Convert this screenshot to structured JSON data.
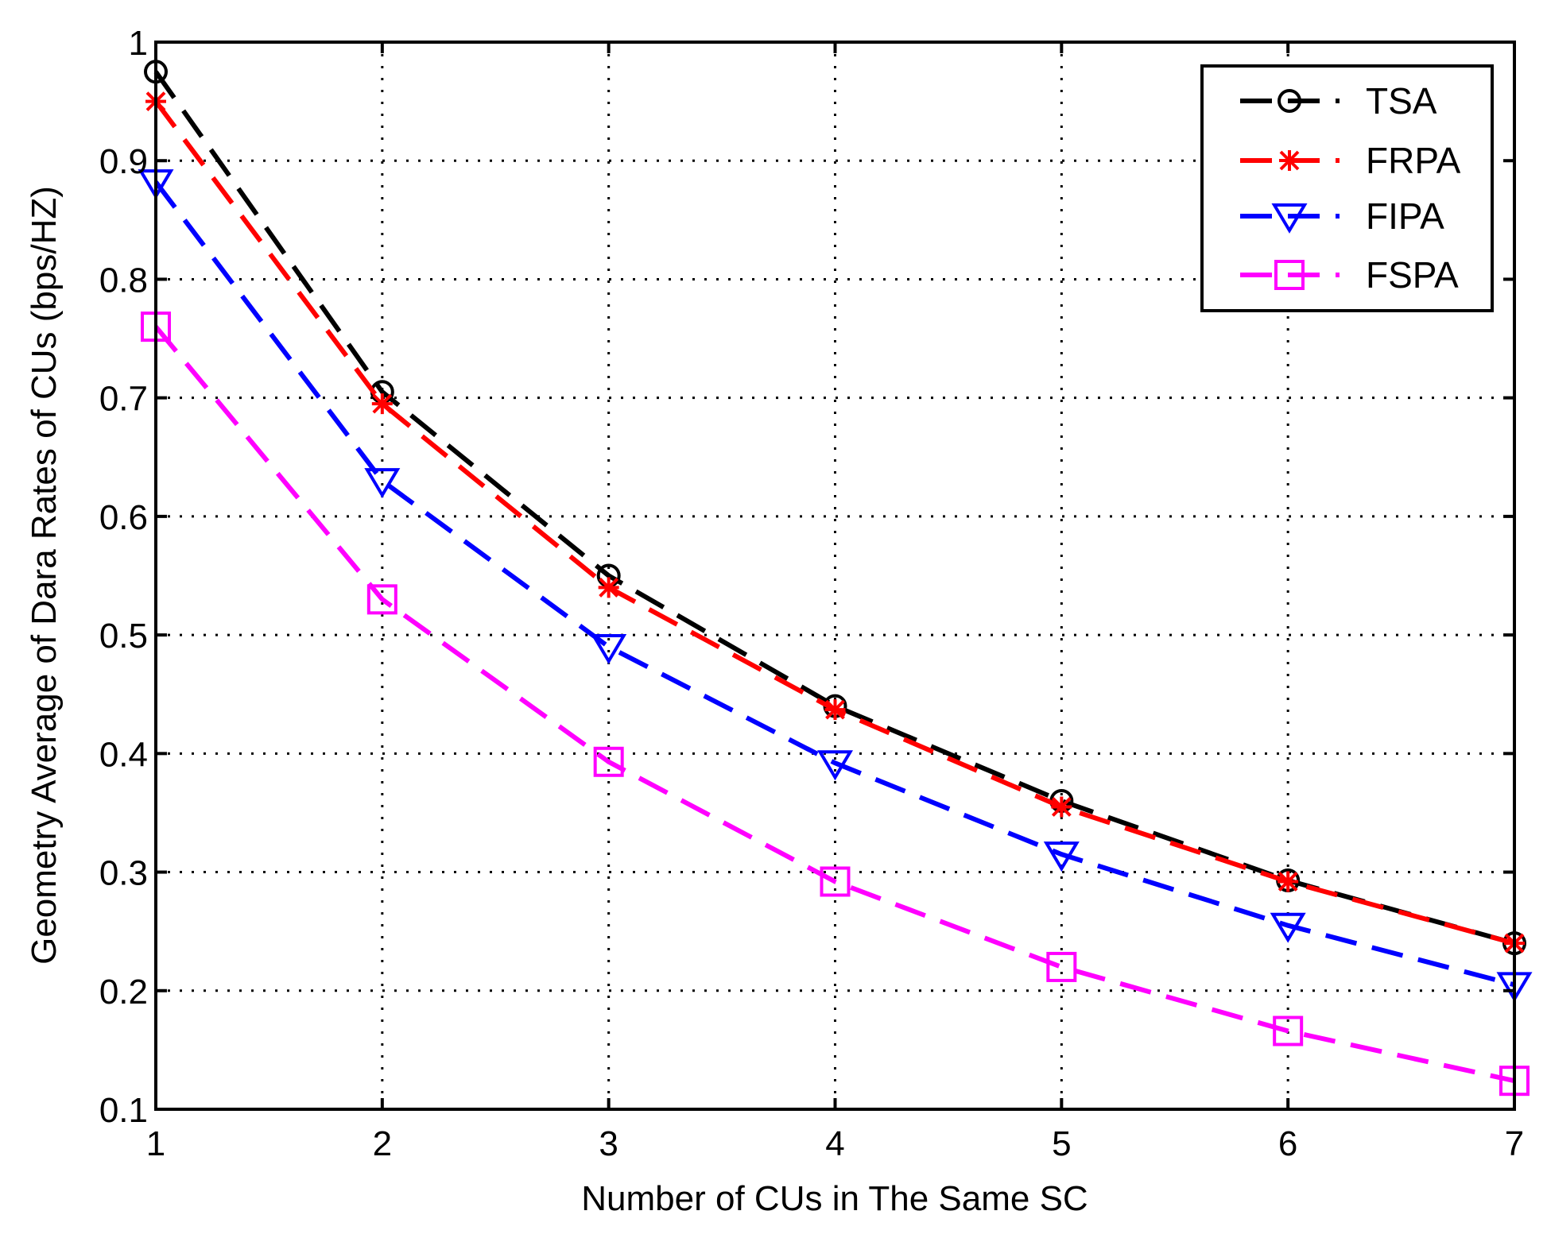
{
  "chart_data": {
    "type": "line",
    "title": "",
    "xlabel": "Number of CUs in The Same SC",
    "ylabel": "Geometry Average of Dara Rates of CUs (bps/HZ)",
    "xlim": [
      1,
      7
    ],
    "ylim": [
      0.1,
      1
    ],
    "x": [
      1,
      2,
      3,
      4,
      5,
      6,
      7
    ],
    "xticks": [
      "1",
      "2",
      "3",
      "4",
      "5",
      "6",
      "7"
    ],
    "yticks": [
      "0.1",
      "0.2",
      "0.3",
      "0.4",
      "0.5",
      "0.6",
      "0.7",
      "0.8",
      "0.9",
      "1"
    ],
    "grid": true,
    "legend_position": "top-right",
    "series": [
      {
        "name": "TSA",
        "color": "#000000",
        "marker": "circle",
        "values": [
          0.975,
          0.705,
          0.55,
          0.44,
          0.36,
          0.293,
          0.24
        ]
      },
      {
        "name": "FRPA",
        "color": "#ff0000",
        "marker": "star",
        "values": [
          0.95,
          0.695,
          0.54,
          0.437,
          0.355,
          0.292,
          0.24
        ]
      },
      {
        "name": "FIPA",
        "color": "#0000ff",
        "marker": "triangle-down",
        "values": [
          0.882,
          0.63,
          0.49,
          0.392,
          0.315,
          0.255,
          0.205
        ]
      },
      {
        "name": "FSPA",
        "color": "#ff00ff",
        "marker": "square",
        "values": [
          0.76,
          0.53,
          0.393,
          0.292,
          0.22,
          0.166,
          0.124
        ]
      }
    ]
  }
}
